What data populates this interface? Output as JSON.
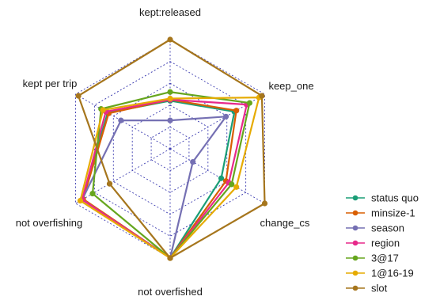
{
  "chart_data": {
    "type": "radar",
    "title": "",
    "axes": [
      "kept:released",
      "keep_one",
      "change_cs",
      "not overfished",
      "not overfishing",
      "kept per trip"
    ],
    "grid_levels": 5,
    "range": [
      0,
      1
    ],
    "legend_position": "right",
    "series": [
      {
        "name": "status quo",
        "color": "#1b9e77",
        "values": [
          0.44,
          0.68,
          0.54,
          1.0,
          0.93,
          0.66
        ]
      },
      {
        "name": "minsize-1",
        "color": "#d95f02",
        "values": [
          0.45,
          0.7,
          0.59,
          1.0,
          0.92,
          0.65
        ]
      },
      {
        "name": "season",
        "color": "#7570b3",
        "values": [
          0.26,
          0.59,
          0.24,
          1.0,
          0.93,
          0.52
        ]
      },
      {
        "name": "region",
        "color": "#e7298a",
        "values": [
          0.45,
          0.81,
          0.62,
          1.0,
          0.93,
          0.68
        ]
      },
      {
        "name": "3@17",
        "color": "#66a61e",
        "values": [
          0.52,
          0.84,
          0.65,
          1.0,
          0.82,
          0.73
        ]
      },
      {
        "name": "1@16-19",
        "color": "#e6ab02",
        "values": [
          0.46,
          0.94,
          0.7,
          1.0,
          0.95,
          0.71
        ]
      },
      {
        "name": "slot",
        "color": "#a6761d",
        "values": [
          1.0,
          0.97,
          1.0,
          1.0,
          0.64,
          0.97
        ]
      }
    ]
  }
}
